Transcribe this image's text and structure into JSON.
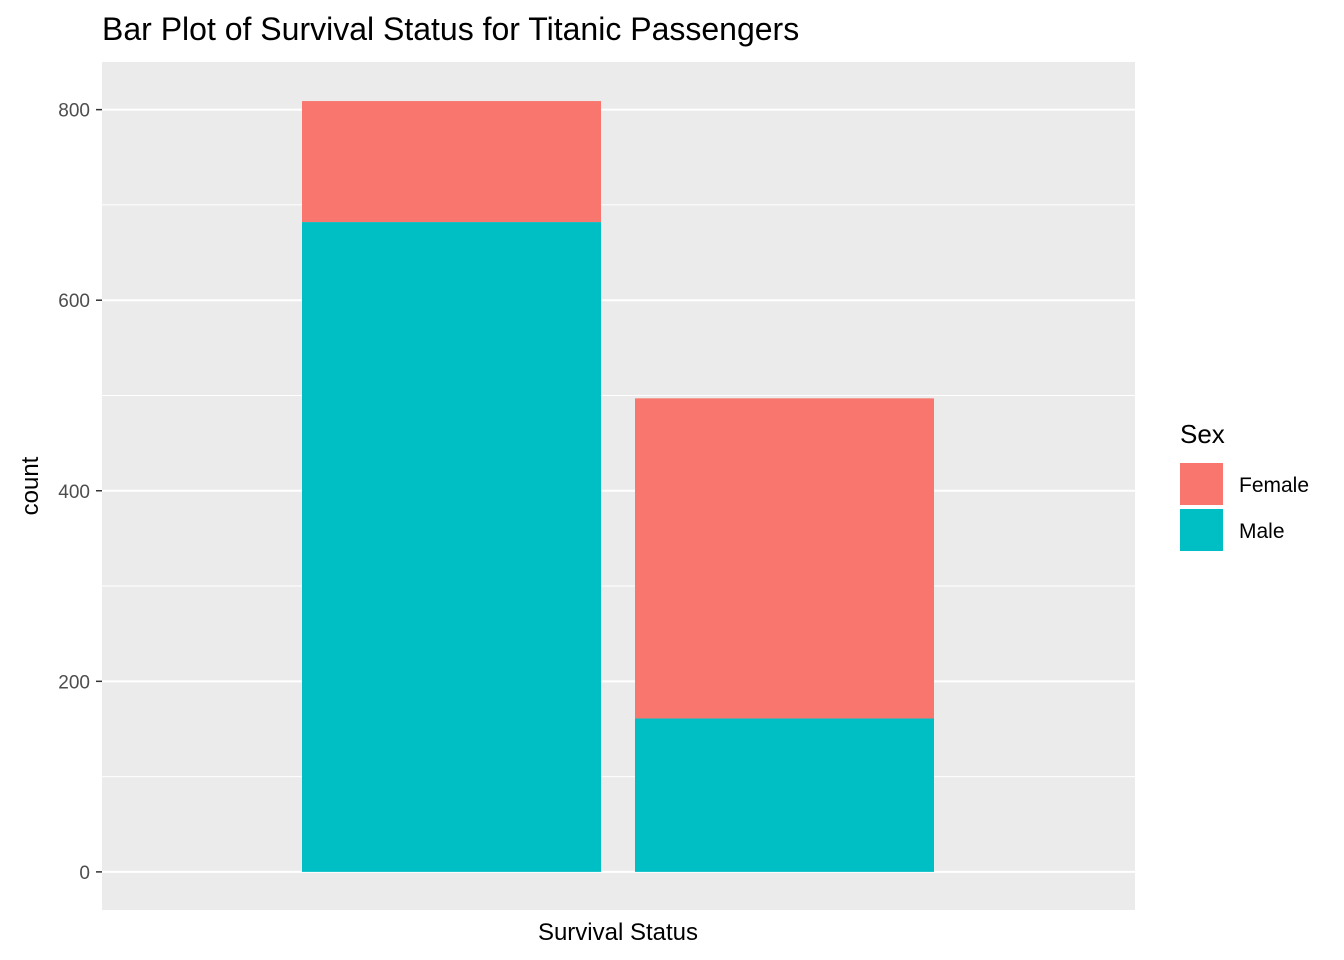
{
  "chart_data": {
    "type": "bar",
    "stacked": true,
    "title": "Bar Plot of Survival Status for Titanic Passengers",
    "xlabel": "Survival Status",
    "ylabel": "count",
    "categories": [
      "",
      ""
    ],
    "series": [
      {
        "name": "Male",
        "values": [
          682,
          161
        ],
        "color": "#00BFC4"
      },
      {
        "name": "Female",
        "values": [
          127,
          336
        ],
        "color": "#F8766D"
      }
    ],
    "ylim": [
      -40,
      850
    ],
    "yticks": [
      0,
      200,
      400,
      600,
      800
    ],
    "ytick_labels": [
      "0",
      "200",
      "400",
      "600",
      "800"
    ],
    "grid": true,
    "panel_background": "#EBEBEB",
    "legend": {
      "title": "Sex",
      "position": "right",
      "entries": [
        {
          "label": "Female",
          "color": "#F8766D"
        },
        {
          "label": "Male",
          "color": "#00BFC4"
        }
      ]
    }
  }
}
